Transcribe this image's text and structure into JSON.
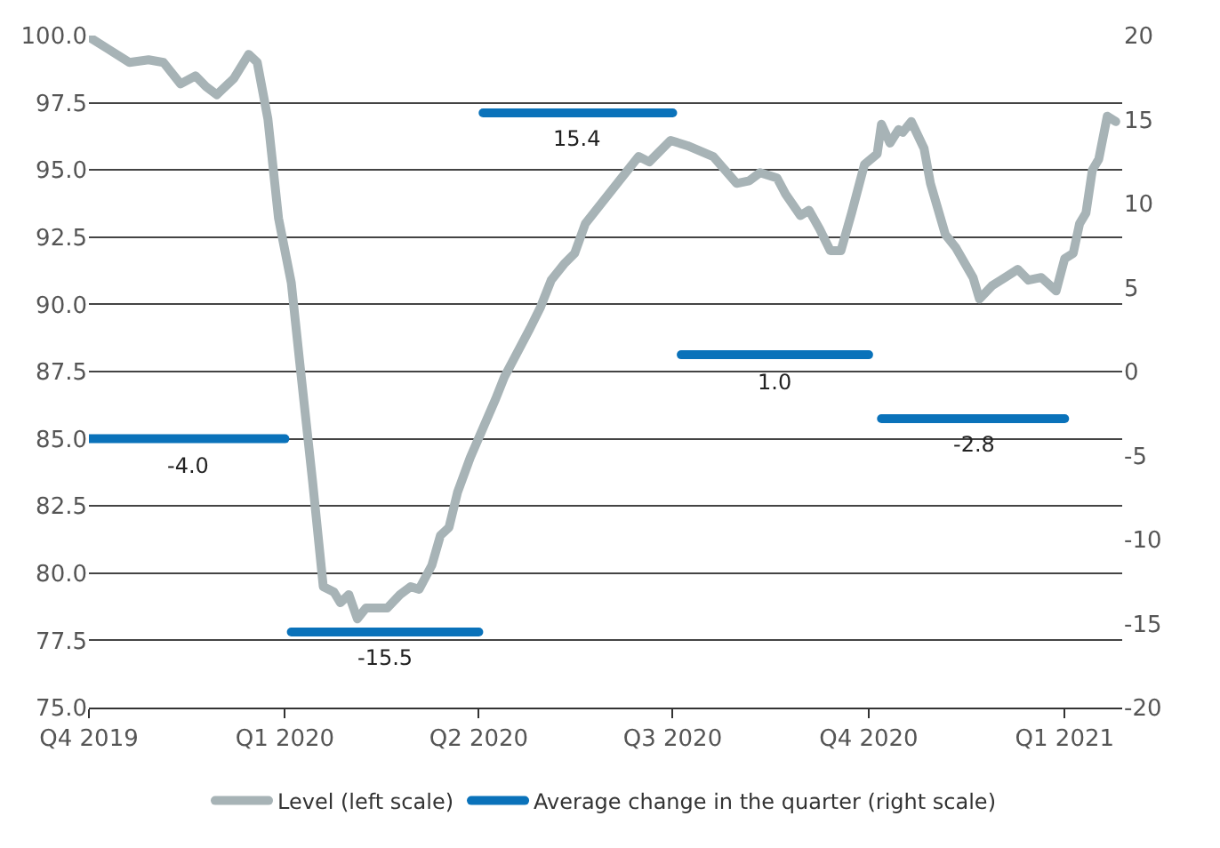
{
  "chart_data": {
    "type": "line",
    "xlim": [
      "2019-10-01",
      "2021-01-28"
    ],
    "xticks": [
      {
        "value": "2019-10-01",
        "label": "Q4 2019"
      },
      {
        "value": "2020-01-01",
        "label": "Q1 2020"
      },
      {
        "value": "2020-04-01",
        "label": "Q2 2020"
      },
      {
        "value": "2020-07-01",
        "label": "Q3 2020"
      },
      {
        "value": "2020-10-01",
        "label": "Q4 2020"
      },
      {
        "value": "2021-01-01",
        "label": "Q1 2021"
      }
    ],
    "ylim": [
      75,
      100
    ],
    "yticks": [
      {
        "value": 75,
        "label": "75.0"
      },
      {
        "value": 77.5,
        "label": "77.5"
      },
      {
        "value": 80,
        "label": "80.0"
      },
      {
        "value": 82.5,
        "label": "82.5"
      },
      {
        "value": 85,
        "label": "85.0"
      },
      {
        "value": 87.5,
        "label": "87.5"
      },
      {
        "value": 90,
        "label": "90.0"
      },
      {
        "value": 92.5,
        "label": "92.5"
      },
      {
        "value": 95,
        "label": "95.0"
      },
      {
        "value": 97.5,
        "label": "97.5"
      },
      {
        "value": 100,
        "label": "100.0"
      }
    ],
    "y2lim": [
      -20,
      20
    ],
    "y2ticks": [
      -20,
      -15,
      -10,
      -5,
      0,
      5,
      10,
      15,
      20
    ],
    "grid": "y",
    "legend": "bottom",
    "marker": "none",
    "line_style": "solid",
    "series": [
      {
        "name": "Level (left scale)",
        "color": "#a7b3b6",
        "x": [
          "2019-10-01",
          "2019-10-10",
          "2019-10-20",
          "2019-10-29",
          "2019-11-05",
          "2019-11-13",
          "2019-11-20",
          "2019-11-25",
          "2019-11-30",
          "2019-12-08",
          "2019-12-15",
          "2019-12-19",
          "2019-12-24",
          "2019-12-29",
          "2020-01-04",
          "2020-01-08",
          "2020-01-14",
          "2020-01-19",
          "2020-01-24",
          "2020-01-27",
          "2020-01-31",
          "2020-02-04",
          "2020-02-08",
          "2020-02-18",
          "2020-02-24",
          "2020-02-29",
          "2020-03-04",
          "2020-03-10",
          "2020-03-14",
          "2020-03-18",
          "2020-03-22",
          "2020-03-28",
          "2020-04-03",
          "2020-04-09",
          "2020-04-13",
          "2020-04-19",
          "2020-04-25",
          "2020-04-30",
          "2020-05-05",
          "2020-05-11",
          "2020-05-16",
          "2020-05-21",
          "2020-05-30",
          "2020-06-10",
          "2020-06-15",
          "2020-06-20",
          "2020-06-30",
          "2020-07-08",
          "2020-07-20",
          "2020-07-31",
          "2020-08-06",
          "2020-08-11",
          "2020-08-19",
          "2020-08-23",
          "2020-08-30",
          "2020-09-03",
          "2020-09-08",
          "2020-09-13",
          "2020-09-18",
          "2020-09-23",
          "2020-09-29",
          "2020-10-05",
          "2020-10-07",
          "2020-10-11",
          "2020-10-15",
          "2020-10-17",
          "2020-10-21",
          "2020-10-27",
          "2020-10-30",
          "2020-11-06",
          "2020-11-11",
          "2020-11-19",
          "2020-11-22",
          "2020-11-28",
          "2020-12-04",
          "2020-12-10",
          "2020-12-15",
          "2020-12-21",
          "2020-12-28",
          "2021-01-01",
          "2021-01-05",
          "2021-01-08",
          "2021-01-11",
          "2021-01-14",
          "2021-01-17",
          "2021-01-21",
          "2021-01-25"
        ],
        "values": [
          99.95,
          99.5,
          99.0,
          99.1,
          99.0,
          98.2,
          98.5,
          98.1,
          97.8,
          98.4,
          99.3,
          99.0,
          96.9,
          93.2,
          90.8,
          87.8,
          83.4,
          79.5,
          79.3,
          78.9,
          79.2,
          78.3,
          78.7,
          78.7,
          79.2,
          79.5,
          79.4,
          80.3,
          81.4,
          81.7,
          83.0,
          84.3,
          85.4,
          86.5,
          87.3,
          88.2,
          89.1,
          89.9,
          90.9,
          91.5,
          91.9,
          93.0,
          93.9,
          95.0,
          95.5,
          95.3,
          96.1,
          95.9,
          95.5,
          94.5,
          94.6,
          94.9,
          94.7,
          94.1,
          93.3,
          93.5,
          92.8,
          92.0,
          92.0,
          93.4,
          95.2,
          95.6,
          96.7,
          96.0,
          96.5,
          96.4,
          96.8,
          95.8,
          94.5,
          92.6,
          92.1,
          91.0,
          90.2,
          90.7,
          91.0,
          91.3,
          90.9,
          91.0,
          90.5,
          91.7,
          91.9,
          93.0,
          93.4,
          95.0,
          95.4,
          97.0,
          96.8
        ]
      },
      {
        "name": "Average change in the quarter (right scale)",
        "color": "#0a72ba",
        "axis": "y2",
        "x": [
          "2019-10-01",
          "2020-01-01",
          null,
          "2020-01-04",
          "2020-04-01",
          null,
          "2020-04-03",
          "2020-07-01",
          null,
          "2020-07-05",
          "2020-10-01",
          null,
          "2020-10-07",
          "2021-01-01"
        ],
        "values": [
          -4.0,
          -4.0,
          null,
          -15.5,
          -15.5,
          null,
          15.4,
          15.4,
          null,
          1.0,
          1.0,
          null,
          -2.8,
          -2.8
        ]
      }
    ],
    "annotations": [
      "-4.0",
      "-15.5",
      "15.4",
      "1.0",
      "-2.8"
    ]
  }
}
